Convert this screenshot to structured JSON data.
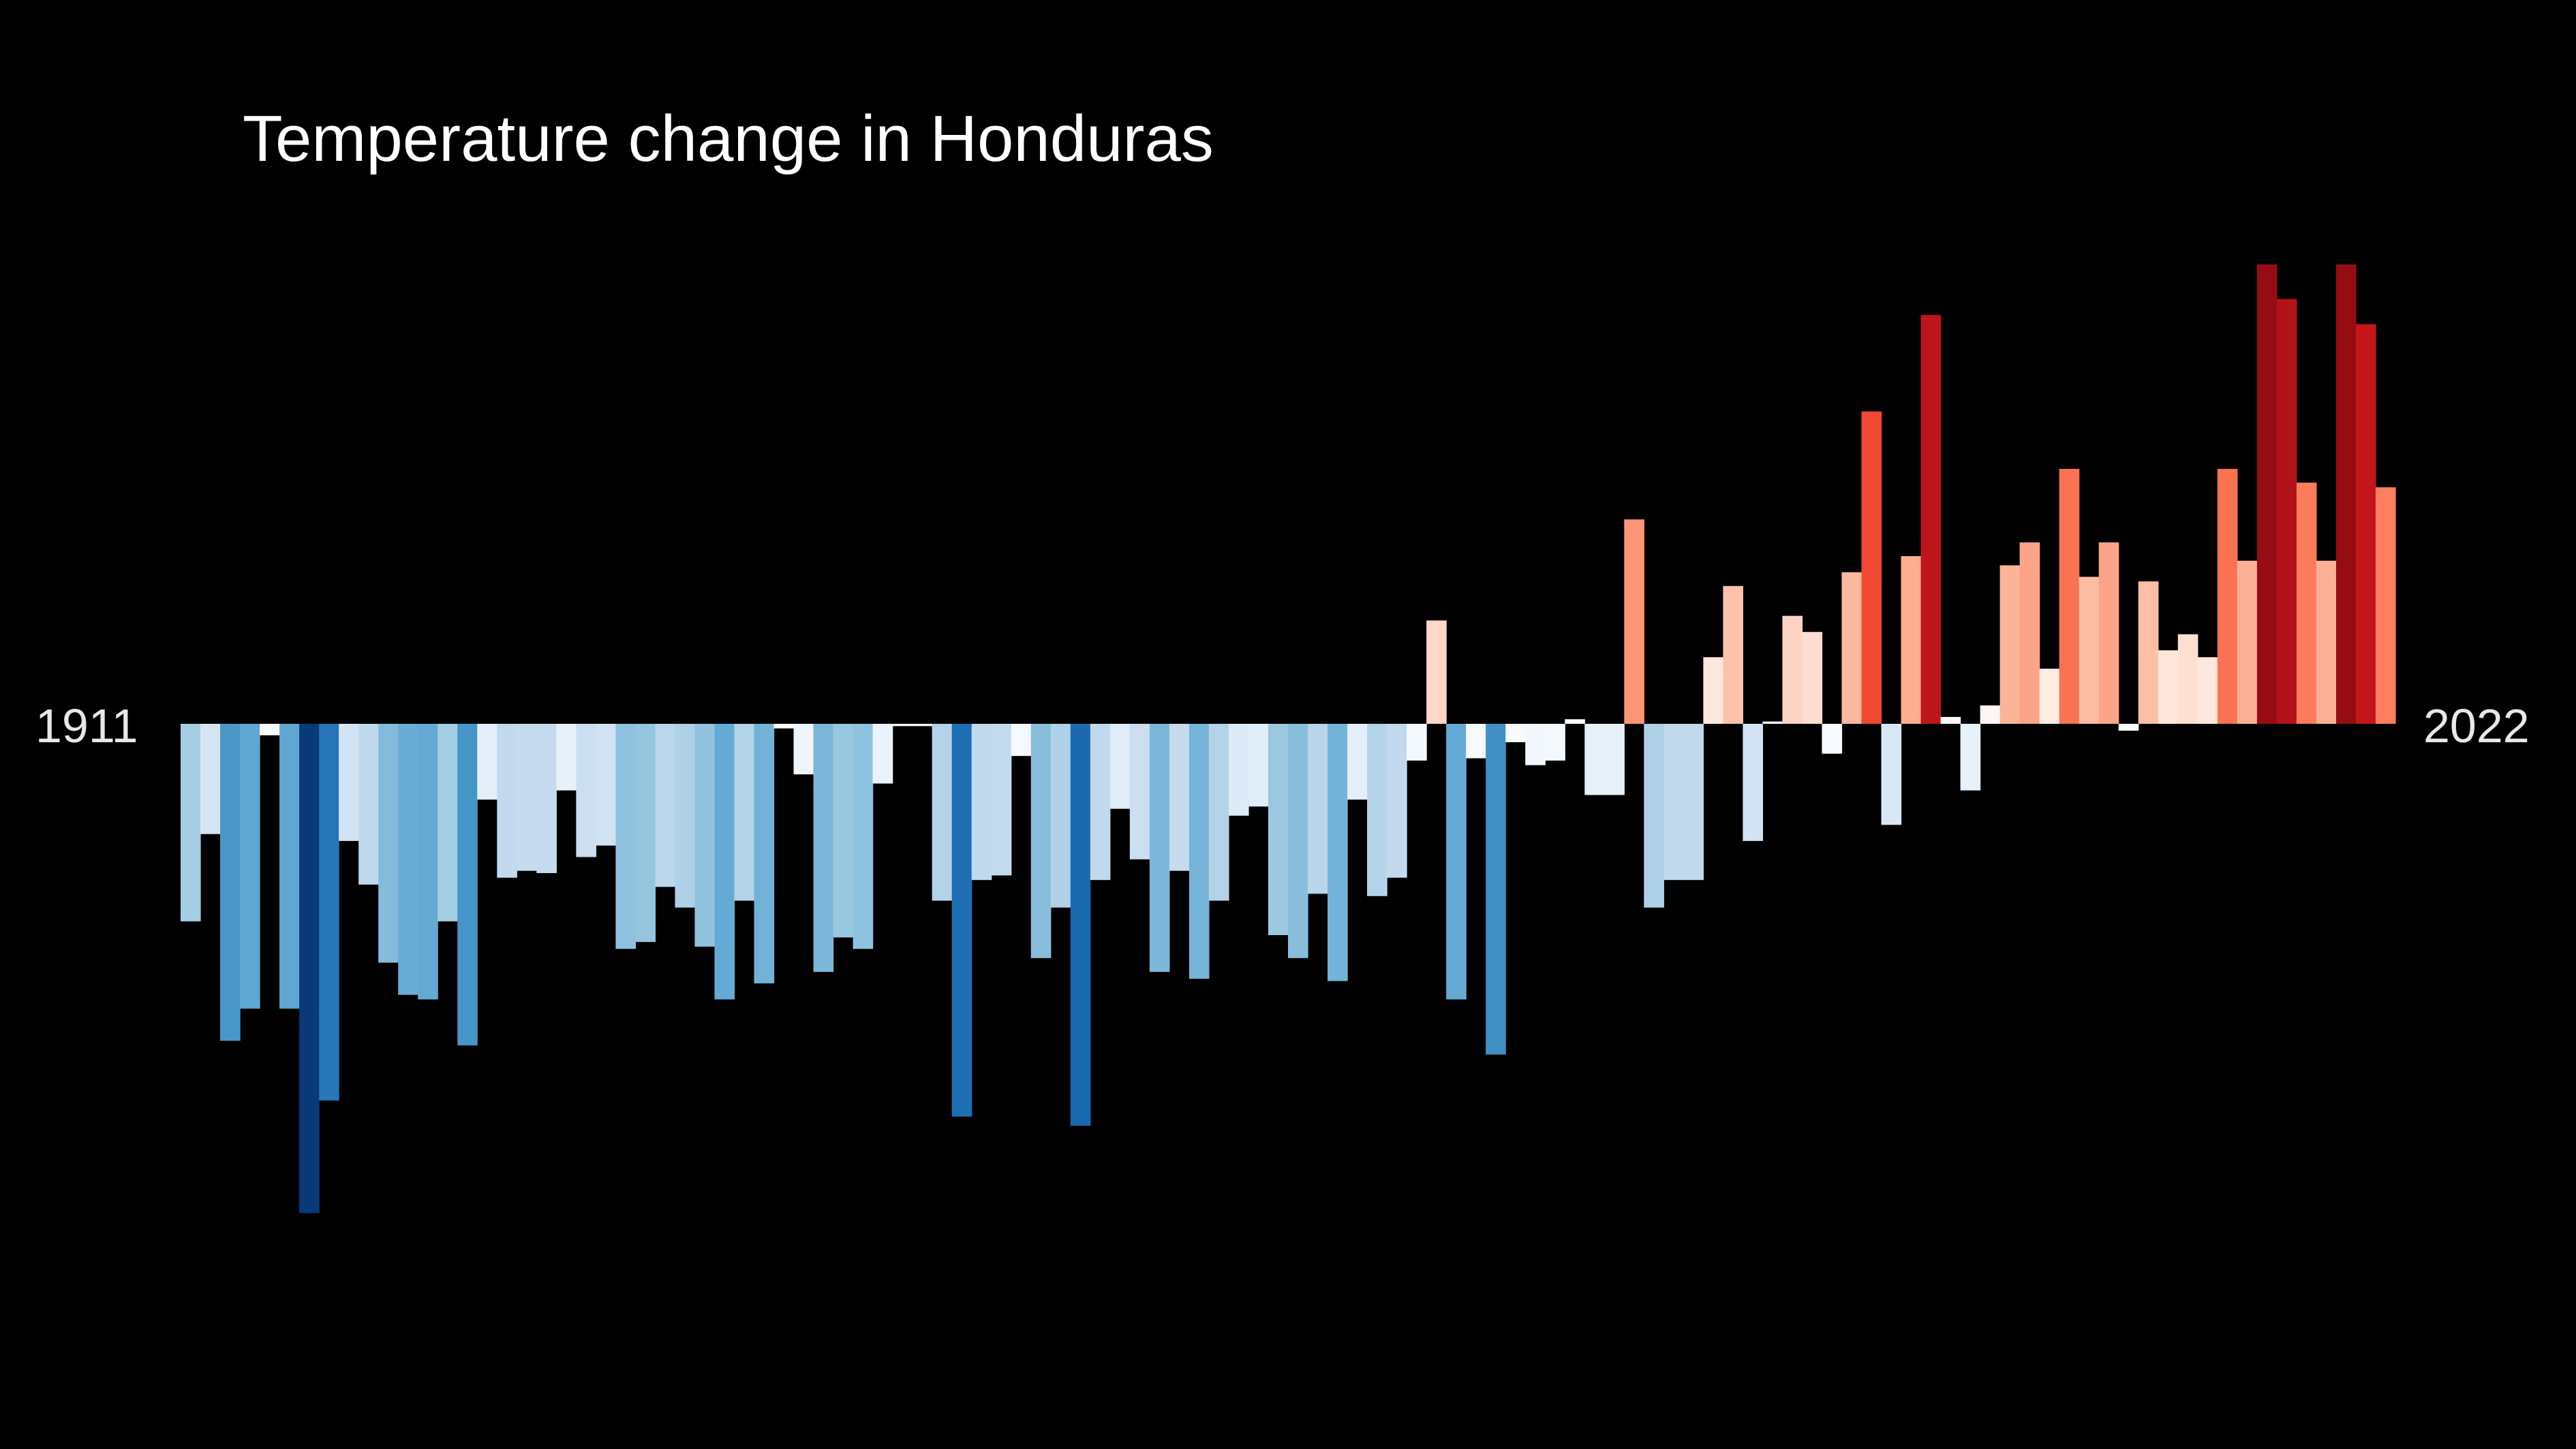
{
  "chart_data": {
    "type": "bar",
    "title": "Temperature change in Honduras",
    "xlabel": "",
    "ylabel": "",
    "start_year_label": "1911",
    "end_year_label": "2022",
    "x": [
      1911,
      1912,
      1913,
      1914,
      1915,
      1916,
      1917,
      1918,
      1919,
      1920,
      1921,
      1922,
      1923,
      1924,
      1925,
      1926,
      1927,
      1928,
      1929,
      1930,
      1931,
      1932,
      1933,
      1934,
      1935,
      1936,
      1937,
      1938,
      1939,
      1940,
      1941,
      1942,
      1943,
      1944,
      1945,
      1946,
      1947,
      1948,
      1949,
      1950,
      1951,
      1952,
      1953,
      1954,
      1955,
      1956,
      1957,
      1958,
      1959,
      1960,
      1961,
      1962,
      1963,
      1964,
      1965,
      1966,
      1967,
      1968,
      1969,
      1970,
      1971,
      1972,
      1973,
      1974,
      1975,
      1976,
      1977,
      1978,
      1979,
      1980,
      1981,
      1982,
      1983,
      1984,
      1985,
      1986,
      1987,
      1988,
      1989,
      1990,
      1991,
      1992,
      1993,
      1994,
      1995,
      1996,
      1997,
      1998,
      1999,
      2000,
      2001,
      2002,
      2003,
      2004,
      2005,
      2006,
      2007,
      2008,
      2009,
      2010,
      2011,
      2012,
      2013,
      2014,
      2015,
      2016,
      2017,
      2018,
      2019,
      2020,
      2021,
      2022
    ],
    "values": [
      -0.86,
      -0.48,
      -1.38,
      -1.24,
      -0.05,
      -1.24,
      -2.13,
      -1.64,
      -0.51,
      -0.7,
      -1.04,
      -1.18,
      -1.2,
      -0.86,
      -1.4,
      -0.33,
      -0.67,
      -0.64,
      -0.65,
      -0.29,
      -0.58,
      -0.53,
      -0.98,
      -0.95,
      -0.71,
      -0.8,
      -0.97,
      -1.2,
      -0.77,
      -1.13,
      -0.02,
      -0.22,
      -1.08,
      -0.93,
      -0.98,
      -0.26,
      -0.01,
      -0.01,
      -0.77,
      -1.71,
      -0.68,
      -0.66,
      -0.14,
      -1.02,
      -0.8,
      -1.75,
      -0.68,
      -0.37,
      -0.59,
      -1.08,
      -0.64,
      -1.11,
      -0.77,
      -0.4,
      -0.36,
      -0.92,
      -1.02,
      -0.74,
      -1.12,
      -0.33,
      -0.75,
      -0.67,
      -0.16,
      0.45,
      -1.2,
      -0.15,
      -1.44,
      -0.08,
      -0.18,
      -0.16,
      0.02,
      -0.31,
      -0.31,
      0.89,
      -0.8,
      -0.68,
      -0.68,
      0.29,
      0.6,
      -0.51,
      0.01,
      0.47,
      0.4,
      -0.13,
      0.66,
      1.36,
      -0.44,
      0.73,
      1.78,
      0.03,
      -0.29,
      0.08,
      0.69,
      0.79,
      0.24,
      1.11,
      0.64,
      0.79,
      -0.03,
      0.62,
      0.32,
      0.39,
      0.29,
      1.11,
      0.71,
      2.0,
      1.85,
      1.05,
      0.71,
      2.0,
      1.74,
      1.03
    ],
    "ylim": [
      -2.4,
      2.6
    ],
    "color_scale": {
      "min": -2.2,
      "max": 2.2,
      "colors": [
        "#08306b",
        "#08519c",
        "#2171b5",
        "#4292c6",
        "#6baed6",
        "#9ecae1",
        "#c6dbef",
        "#deebf7",
        "#f7fbff",
        "#fff5f0",
        "#fee0d2",
        "#fcbba1",
        "#fc9272",
        "#fb6a4a",
        "#ef3b2c",
        "#cb181d",
        "#a50f15",
        "#67000d"
      ]
    },
    "grid": false,
    "legend": "none"
  }
}
